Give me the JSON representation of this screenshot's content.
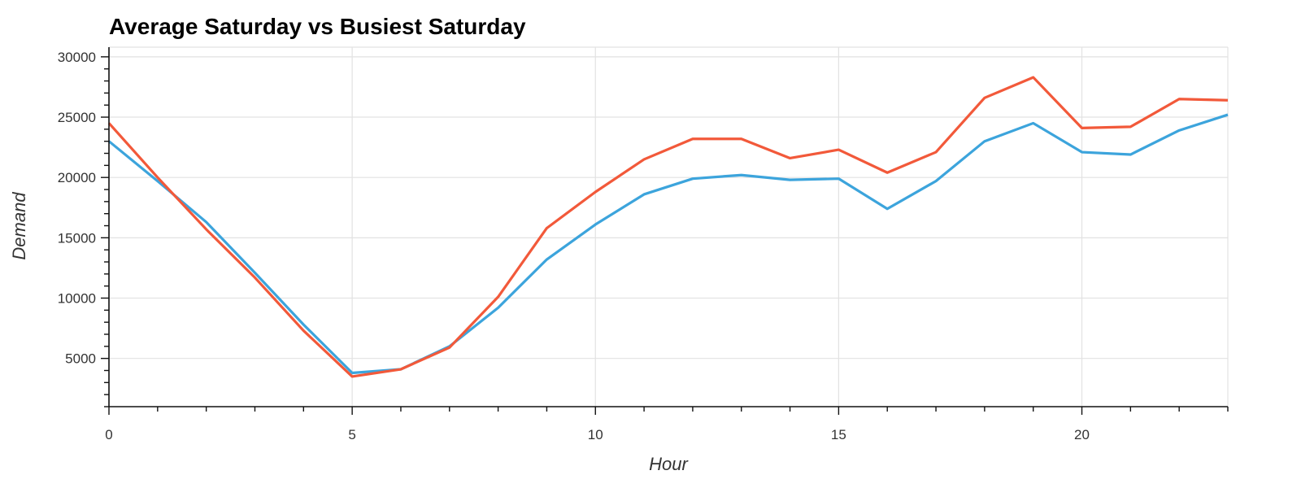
{
  "chart_data": {
    "type": "line",
    "title": "Average Saturday vs Busiest Saturday",
    "xlabel": "Hour",
    "ylabel": "Demand",
    "xlim": [
      0,
      23
    ],
    "ylim": [
      1000,
      30800
    ],
    "x_ticks": [
      0,
      5,
      10,
      15,
      20
    ],
    "y_ticks": [
      5000,
      10000,
      15000,
      20000,
      25000,
      30000
    ],
    "grid": true,
    "x": [
      0,
      1,
      2,
      3,
      4,
      5,
      6,
      7,
      8,
      9,
      10,
      11,
      12,
      13,
      14,
      15,
      16,
      17,
      18,
      19,
      20,
      21,
      22,
      23
    ],
    "series": [
      {
        "color": "#3ca4dc",
        "values": [
          23000,
          19700,
          16300,
          12100,
          7800,
          3800,
          4100,
          6000,
          9200,
          13200,
          16100,
          18600,
          19900,
          20200,
          19800,
          19900,
          17400,
          19700,
          23000,
          24500,
          22100,
          21900,
          23900,
          25200
        ]
      },
      {
        "color": "#f2593a",
        "values": [
          24500,
          20000,
          15700,
          11700,
          7300,
          3500,
          4100,
          5900,
          10100,
          15800,
          18800,
          21500,
          23200,
          23200,
          21600,
          22300,
          20400,
          22100,
          26600,
          28300,
          24100,
          24200,
          26500,
          26400
        ]
      }
    ]
  }
}
